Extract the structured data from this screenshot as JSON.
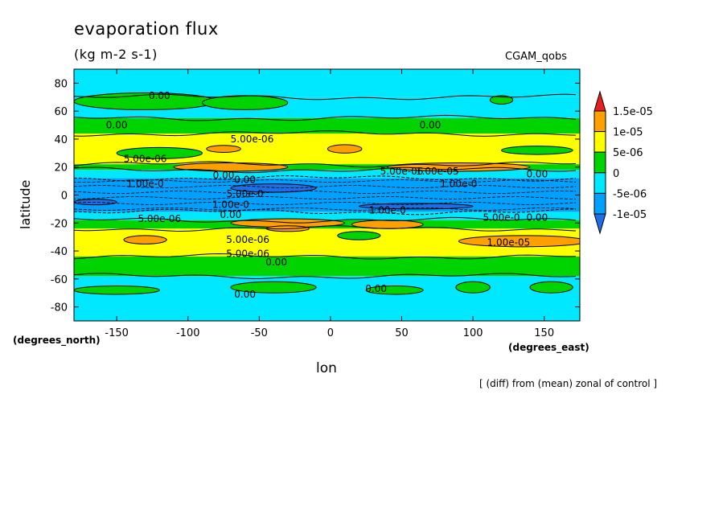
{
  "chart_data": {
    "type": "heatmap",
    "title": "evaporation flux",
    "subtitle": "(kg m-2 s-1)",
    "experiment_label": "CGAM_qobs",
    "xlabel": "lon",
    "ylabel": "latitude",
    "x_units_label": "(degrees_east)",
    "y_units_label": "(degrees_north)",
    "note": "[ (diff) from (mean) zonal of control ]",
    "xlim": [
      -180,
      175
    ],
    "ylim": [
      -90,
      90
    ],
    "x_ticks": [
      -150,
      -100,
      -50,
      0,
      50,
      100,
      150
    ],
    "x_tick_labels": [
      "-150",
      "-100",
      "-50",
      "0",
      "50",
      "100",
      "150"
    ],
    "y_ticks": [
      -80,
      -60,
      -40,
      -20,
      0,
      20,
      40,
      60,
      80
    ],
    "y_tick_labels": [
      "-80",
      "-60",
      "-40",
      "-20",
      "0",
      "20",
      "40",
      "60",
      "80"
    ],
    "colorbar": {
      "levels": [
        -1.5e-05,
        -1e-05,
        -5e-06,
        0,
        5e-06,
        1e-05,
        1.5e-05,
        2e-05
      ],
      "labels": [
        "1.5e-05",
        "1e-05",
        "5e-06",
        "0",
        "-5e-06",
        "-1e-05"
      ],
      "colors": [
        "#1e6fe6",
        "#00a0ff",
        "#00e8ff",
        "#00d400",
        "#ffff00",
        "#ffa000",
        "#e62020"
      ]
    },
    "zonal_bands": [
      {
        "lat_from": 70,
        "lat_to": 90,
        "color": "#00e8ff"
      },
      {
        "lat_from": 55,
        "lat_to": 70,
        "color": "#00e8ff"
      },
      {
        "lat_from": 44,
        "lat_to": 55,
        "color": "#00d400"
      },
      {
        "lat_from": 22,
        "lat_to": 44,
        "color": "#ffff00"
      },
      {
        "lat_from": 18,
        "lat_to": 22,
        "color": "#00d400"
      },
      {
        "lat_from": 12,
        "lat_to": 18,
        "color": "#00e8ff"
      },
      {
        "lat_from": -12,
        "lat_to": 12,
        "color": "#00a0ff"
      },
      {
        "lat_from": -18,
        "lat_to": -12,
        "color": "#00e8ff"
      },
      {
        "lat_from": -24,
        "lat_to": -18,
        "color": "#00d400"
      },
      {
        "lat_from": -44,
        "lat_to": -24,
        "color": "#ffff00"
      },
      {
        "lat_from": -58,
        "lat_to": -44,
        "color": "#00d400"
      },
      {
        "lat_from": -90,
        "lat_to": -58,
        "color": "#00e8ff"
      }
    ],
    "patches": [
      {
        "lon": -130,
        "lat": 67,
        "rlon": 50,
        "rlat": 6,
        "color": "#00d400"
      },
      {
        "lon": -60,
        "lat": 66,
        "rlon": 30,
        "rlat": 5,
        "color": "#00d400"
      },
      {
        "lon": 120,
        "lat": 68,
        "rlon": 8,
        "rlat": 3,
        "color": "#00d400"
      },
      {
        "lon": -120,
        "lat": 30,
        "rlon": 30,
        "rlat": 4,
        "color": "#00d400"
      },
      {
        "lon": 145,
        "lat": 32,
        "rlon": 25,
        "rlat": 3,
        "color": "#00d400"
      },
      {
        "lon": -70,
        "lat": 20,
        "rlon": 40,
        "rlat": 3,
        "color": "#ffa000"
      },
      {
        "lon": 10,
        "lat": 33,
        "rlon": 12,
        "rlat": 3,
        "color": "#ffa000"
      },
      {
        "lon": -75,
        "lat": 33,
        "rlon": 12,
        "rlat": 2.5,
        "color": "#ffa000"
      },
      {
        "lon": 90,
        "lat": 20,
        "rlon": 50,
        "rlat": 3,
        "color": "#ffa000"
      },
      {
        "lon": -30,
        "lat": -20,
        "rlon": 40,
        "rlat": 3,
        "color": "#ffa000"
      },
      {
        "lon": 40,
        "lat": -21,
        "rlon": 25,
        "rlat": 3,
        "color": "#ffa000"
      },
      {
        "lon": 135,
        "lat": -33,
        "rlon": 45,
        "rlat": 4,
        "color": "#ffa000"
      },
      {
        "lon": -30,
        "lat": -24,
        "rlon": 15,
        "rlat": 2,
        "color": "#ffa000"
      },
      {
        "lon": 20,
        "lat": -29,
        "rlon": 15,
        "rlat": 3,
        "color": "#00d400"
      },
      {
        "lon": -130,
        "lat": -32,
        "rlon": 15,
        "rlat": 3,
        "color": "#ffa000"
      },
      {
        "lon": -40,
        "lat": -66,
        "rlon": 30,
        "rlat": 4,
        "color": "#00d400"
      },
      {
        "lon": 45,
        "lat": -68,
        "rlon": 20,
        "rlat": 3,
        "color": "#00d400"
      },
      {
        "lon": 100,
        "lat": -66,
        "rlon": 12,
        "rlat": 4,
        "color": "#00d400"
      },
      {
        "lon": 155,
        "lat": -66,
        "rlon": 15,
        "rlat": 4,
        "color": "#00d400"
      },
      {
        "lon": -150,
        "lat": -68,
        "rlon": 30,
        "rlat": 3,
        "color": "#00d400"
      },
      {
        "lon": -165,
        "lat": -5,
        "rlon": 15,
        "rlat": 2,
        "color": "#1e6fe6"
      },
      {
        "lon": -40,
        "lat": 5,
        "rlon": 30,
        "rlat": 3,
        "color": "#1e6fe6"
      },
      {
        "lon": 60,
        "lat": -8,
        "rlon": 40,
        "rlat": 2,
        "color": "#1e6fe6"
      }
    ],
    "contour_labels": [
      {
        "text": "0.00",
        "lon": -120,
        "lat": 71
      },
      {
        "text": "0.00",
        "lon": -150,
        "lat": 50
      },
      {
        "text": "0.00",
        "lon": 70,
        "lat": 50
      },
      {
        "text": "5.00e-06",
        "lon": -55,
        "lat": 40
      },
      {
        "text": "5.00e-06",
        "lon": -130,
        "lat": 26
      },
      {
        "text": "5.00e-06",
        "lon": 50,
        "lat": 17
      },
      {
        "text": "1.00e-05",
        "lon": 75,
        "lat": 17
      },
      {
        "text": "0.00",
        "lon": 145,
        "lat": 15
      },
      {
        "text": "0.00",
        "lon": -75,
        "lat": 14
      },
      {
        "text": "0.00",
        "lon": -60,
        "lat": 11
      },
      {
        "text": "1.00e-0",
        "lon": -130,
        "lat": 8
      },
      {
        "text": "1.00e-0",
        "lon": 90,
        "lat": 8
      },
      {
        "text": "5.00e-0",
        "lon": -60,
        "lat": 1
      },
      {
        "text": "1.00e-0",
        "lon": -70,
        "lat": -7
      },
      {
        "text": "0.00",
        "lon": -70,
        "lat": -14
      },
      {
        "text": "1.00e-0",
        "lon": 40,
        "lat": -11
      },
      {
        "text": "5.00e-06",
        "lon": -120,
        "lat": -17
      },
      {
        "text": "5.00e-0",
        "lon": 120,
        "lat": -16
      },
      {
        "text": "0.00",
        "lon": 145,
        "lat": -16
      },
      {
        "text": "5.00e-06",
        "lon": -58,
        "lat": -32
      },
      {
        "text": "1.00e-05",
        "lon": 125,
        "lat": -34
      },
      {
        "text": "5.00e-06",
        "lon": -58,
        "lat": -42
      },
      {
        "text": "0.00",
        "lon": -38,
        "lat": -48
      },
      {
        "text": "0.00",
        "lon": -60,
        "lat": -71
      },
      {
        "text": "0.00",
        "lon": 32,
        "lat": -67
      }
    ],
    "legend_placement": "right",
    "grid": false
  }
}
